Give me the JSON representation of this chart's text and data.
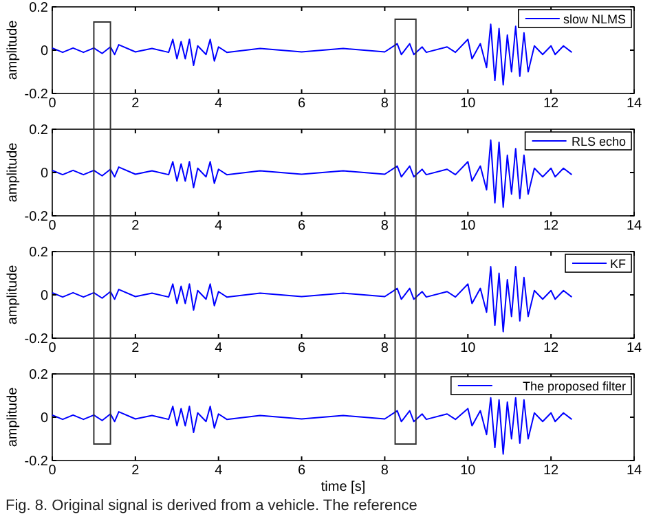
{
  "chart_data": [
    {
      "type": "line",
      "ylabel": "amplitude",
      "xlim": [
        0,
        14
      ],
      "ylim": [
        -0.2,
        0.2
      ],
      "xticks": [
        0,
        2,
        4,
        6,
        8,
        10,
        12,
        14
      ],
      "yticks": [
        -0.2,
        0,
        0.2
      ],
      "legend": "top right",
      "grid": false,
      "x": [
        0,
        0.25,
        0.5,
        0.75,
        1.0,
        1.2,
        1.4,
        1.5,
        1.6,
        2.0,
        2.4,
        2.8,
        2.9,
        3.0,
        3.1,
        3.2,
        3.3,
        3.4,
        3.5,
        3.7,
        3.8,
        3.9,
        4.0,
        4.2,
        5.0,
        6.0,
        7.0,
        8.0,
        8.3,
        8.4,
        8.6,
        8.7,
        8.9,
        9.0,
        9.5,
        9.7,
        10.0,
        10.1,
        10.3,
        10.45,
        10.55,
        10.65,
        10.75,
        10.85,
        10.95,
        11.05,
        11.15,
        11.25,
        11.35,
        11.45,
        11.6,
        11.8,
        12.0,
        12.1,
        12.3,
        12.5
      ],
      "series": [
        {
          "name": "slow NLMS",
          "color": "#0000ff",
          "values": [
            0.01,
            -0.01,
            0.01,
            -0.01,
            0.01,
            -0.015,
            0.015,
            -0.02,
            0.025,
            -0.008,
            0.008,
            -0.01,
            0.05,
            -0.04,
            0.04,
            -0.04,
            0.05,
            -0.07,
            0.02,
            -0.02,
            0.05,
            -0.05,
            0.015,
            -0.01,
            0.008,
            -0.008,
            0.008,
            -0.008,
            0.03,
            -0.02,
            0.03,
            -0.02,
            0.015,
            -0.01,
            0.015,
            -0.01,
            0.05,
            -0.04,
            0.03,
            -0.08,
            0.12,
            -0.14,
            0.1,
            -0.16,
            0.07,
            -0.1,
            0.11,
            -0.12,
            0.08,
            -0.1,
            0.02,
            -0.02,
            0.02,
            -0.02,
            0.02,
            -0.01
          ]
        }
      ]
    },
    {
      "type": "line",
      "ylabel": "amplitude",
      "xlim": [
        0,
        14
      ],
      "ylim": [
        -0.2,
        0.2
      ],
      "xticks": [
        0,
        2,
        4,
        6,
        8,
        10,
        12,
        14
      ],
      "yticks": [
        -0.2,
        0,
        0.2
      ],
      "legend": "top right",
      "grid": false,
      "x": [
        0,
        0.25,
        0.5,
        0.75,
        1.0,
        1.2,
        1.4,
        1.5,
        1.6,
        2.0,
        2.4,
        2.8,
        2.9,
        3.0,
        3.1,
        3.2,
        3.3,
        3.4,
        3.5,
        3.7,
        3.8,
        3.9,
        4.0,
        4.2,
        5.0,
        6.0,
        7.0,
        8.0,
        8.3,
        8.4,
        8.6,
        8.7,
        8.9,
        9.0,
        9.5,
        9.7,
        10.0,
        10.1,
        10.3,
        10.45,
        10.55,
        10.65,
        10.75,
        10.85,
        10.95,
        11.05,
        11.15,
        11.25,
        11.35,
        11.45,
        11.6,
        11.8,
        12.0,
        12.1,
        12.3,
        12.5
      ],
      "series": [
        {
          "name": "RLS echo",
          "color": "#0000ff",
          "values": [
            0.01,
            -0.01,
            0.01,
            -0.01,
            0.01,
            -0.015,
            0.015,
            -0.02,
            0.025,
            -0.008,
            0.008,
            -0.01,
            0.05,
            -0.04,
            0.04,
            -0.04,
            0.05,
            -0.07,
            0.02,
            -0.02,
            0.05,
            -0.05,
            0.015,
            -0.01,
            0.008,
            -0.008,
            0.008,
            -0.008,
            0.03,
            -0.02,
            0.03,
            -0.02,
            0.015,
            -0.01,
            0.015,
            -0.01,
            0.05,
            -0.04,
            0.03,
            -0.08,
            0.15,
            -0.14,
            0.14,
            -0.16,
            0.08,
            -0.1,
            0.11,
            -0.12,
            0.08,
            -0.1,
            0.02,
            -0.02,
            0.02,
            -0.02,
            0.02,
            -0.01
          ]
        }
      ]
    },
    {
      "type": "line",
      "ylabel": "amplitude",
      "xlim": [
        0,
        14
      ],
      "ylim": [
        -0.2,
        0.2
      ],
      "xticks": [
        0,
        2,
        4,
        6,
        8,
        10,
        12,
        14
      ],
      "yticks": [
        -0.2,
        0,
        0.2
      ],
      "legend": "top right",
      "grid": false,
      "x": [
        0,
        0.25,
        0.5,
        0.75,
        1.0,
        1.2,
        1.4,
        1.5,
        1.6,
        2.0,
        2.4,
        2.8,
        2.9,
        3.0,
        3.1,
        3.2,
        3.3,
        3.4,
        3.5,
        3.7,
        3.8,
        3.9,
        4.0,
        4.2,
        5.0,
        6.0,
        7.0,
        8.0,
        8.3,
        8.4,
        8.6,
        8.7,
        8.9,
        9.0,
        9.5,
        9.7,
        10.0,
        10.1,
        10.3,
        10.45,
        10.55,
        10.65,
        10.75,
        10.85,
        10.95,
        11.05,
        11.15,
        11.25,
        11.35,
        11.45,
        11.6,
        11.8,
        12.0,
        12.1,
        12.3,
        12.5
      ],
      "series": [
        {
          "name": "KF",
          "color": "#0000ff",
          "values": [
            0.01,
            -0.01,
            0.01,
            -0.01,
            0.01,
            -0.015,
            0.015,
            -0.02,
            0.025,
            -0.008,
            0.008,
            -0.01,
            0.05,
            -0.04,
            0.04,
            -0.04,
            0.05,
            -0.07,
            0.02,
            -0.02,
            0.05,
            -0.05,
            0.015,
            -0.01,
            0.008,
            -0.008,
            0.008,
            -0.008,
            0.03,
            -0.02,
            0.03,
            -0.02,
            0.015,
            -0.01,
            0.015,
            -0.01,
            0.05,
            -0.04,
            0.03,
            -0.08,
            0.13,
            -0.14,
            0.1,
            -0.17,
            0.07,
            -0.1,
            0.13,
            -0.12,
            0.08,
            -0.1,
            0.02,
            -0.02,
            0.02,
            -0.02,
            0.02,
            -0.01
          ]
        }
      ]
    },
    {
      "type": "line",
      "xlabel": "time [s]",
      "ylabel": "amplitude",
      "xlim": [
        0,
        14
      ],
      "ylim": [
        -0.2,
        0.2
      ],
      "xticks": [
        0,
        2,
        4,
        6,
        8,
        10,
        12,
        14
      ],
      "yticks": [
        -0.2,
        0,
        0.2
      ],
      "legend": "top right",
      "grid": false,
      "x": [
        0,
        0.25,
        0.5,
        0.75,
        1.0,
        1.2,
        1.4,
        1.5,
        1.6,
        2.0,
        2.4,
        2.8,
        2.9,
        3.0,
        3.1,
        3.2,
        3.3,
        3.4,
        3.5,
        3.7,
        3.8,
        3.9,
        4.0,
        4.2,
        5.0,
        6.0,
        7.0,
        8.0,
        8.3,
        8.4,
        8.6,
        8.7,
        8.9,
        9.0,
        9.5,
        9.7,
        10.0,
        10.1,
        10.3,
        10.45,
        10.55,
        10.65,
        10.75,
        10.85,
        10.95,
        11.05,
        11.15,
        11.25,
        11.35,
        11.45,
        11.6,
        11.8,
        12.0,
        12.1,
        12.3,
        12.5
      ],
      "annotations": [
        "Fig. 8.   Original signal is derived from a vehicle. The reference"
      ],
      "series": [
        {
          "name": "The proposed filter",
          "color": "#0000ff",
          "values": [
            0.01,
            -0.01,
            0.01,
            -0.01,
            0.01,
            -0.015,
            0.015,
            -0.02,
            0.025,
            -0.008,
            0.008,
            -0.01,
            0.05,
            -0.04,
            0.04,
            -0.04,
            0.05,
            -0.07,
            0.02,
            -0.02,
            0.05,
            -0.05,
            0.015,
            -0.01,
            0.008,
            -0.008,
            0.008,
            -0.008,
            0.03,
            -0.02,
            0.03,
            -0.02,
            0.015,
            -0.01,
            0.015,
            -0.01,
            0.04,
            -0.04,
            0.03,
            -0.08,
            0.09,
            -0.14,
            0.08,
            -0.17,
            0.07,
            -0.1,
            0.09,
            -0.12,
            0.08,
            -0.1,
            0.02,
            -0.02,
            0.02,
            -0.02,
            0.02,
            -0.01
          ]
        }
      ]
    }
  ]
}
